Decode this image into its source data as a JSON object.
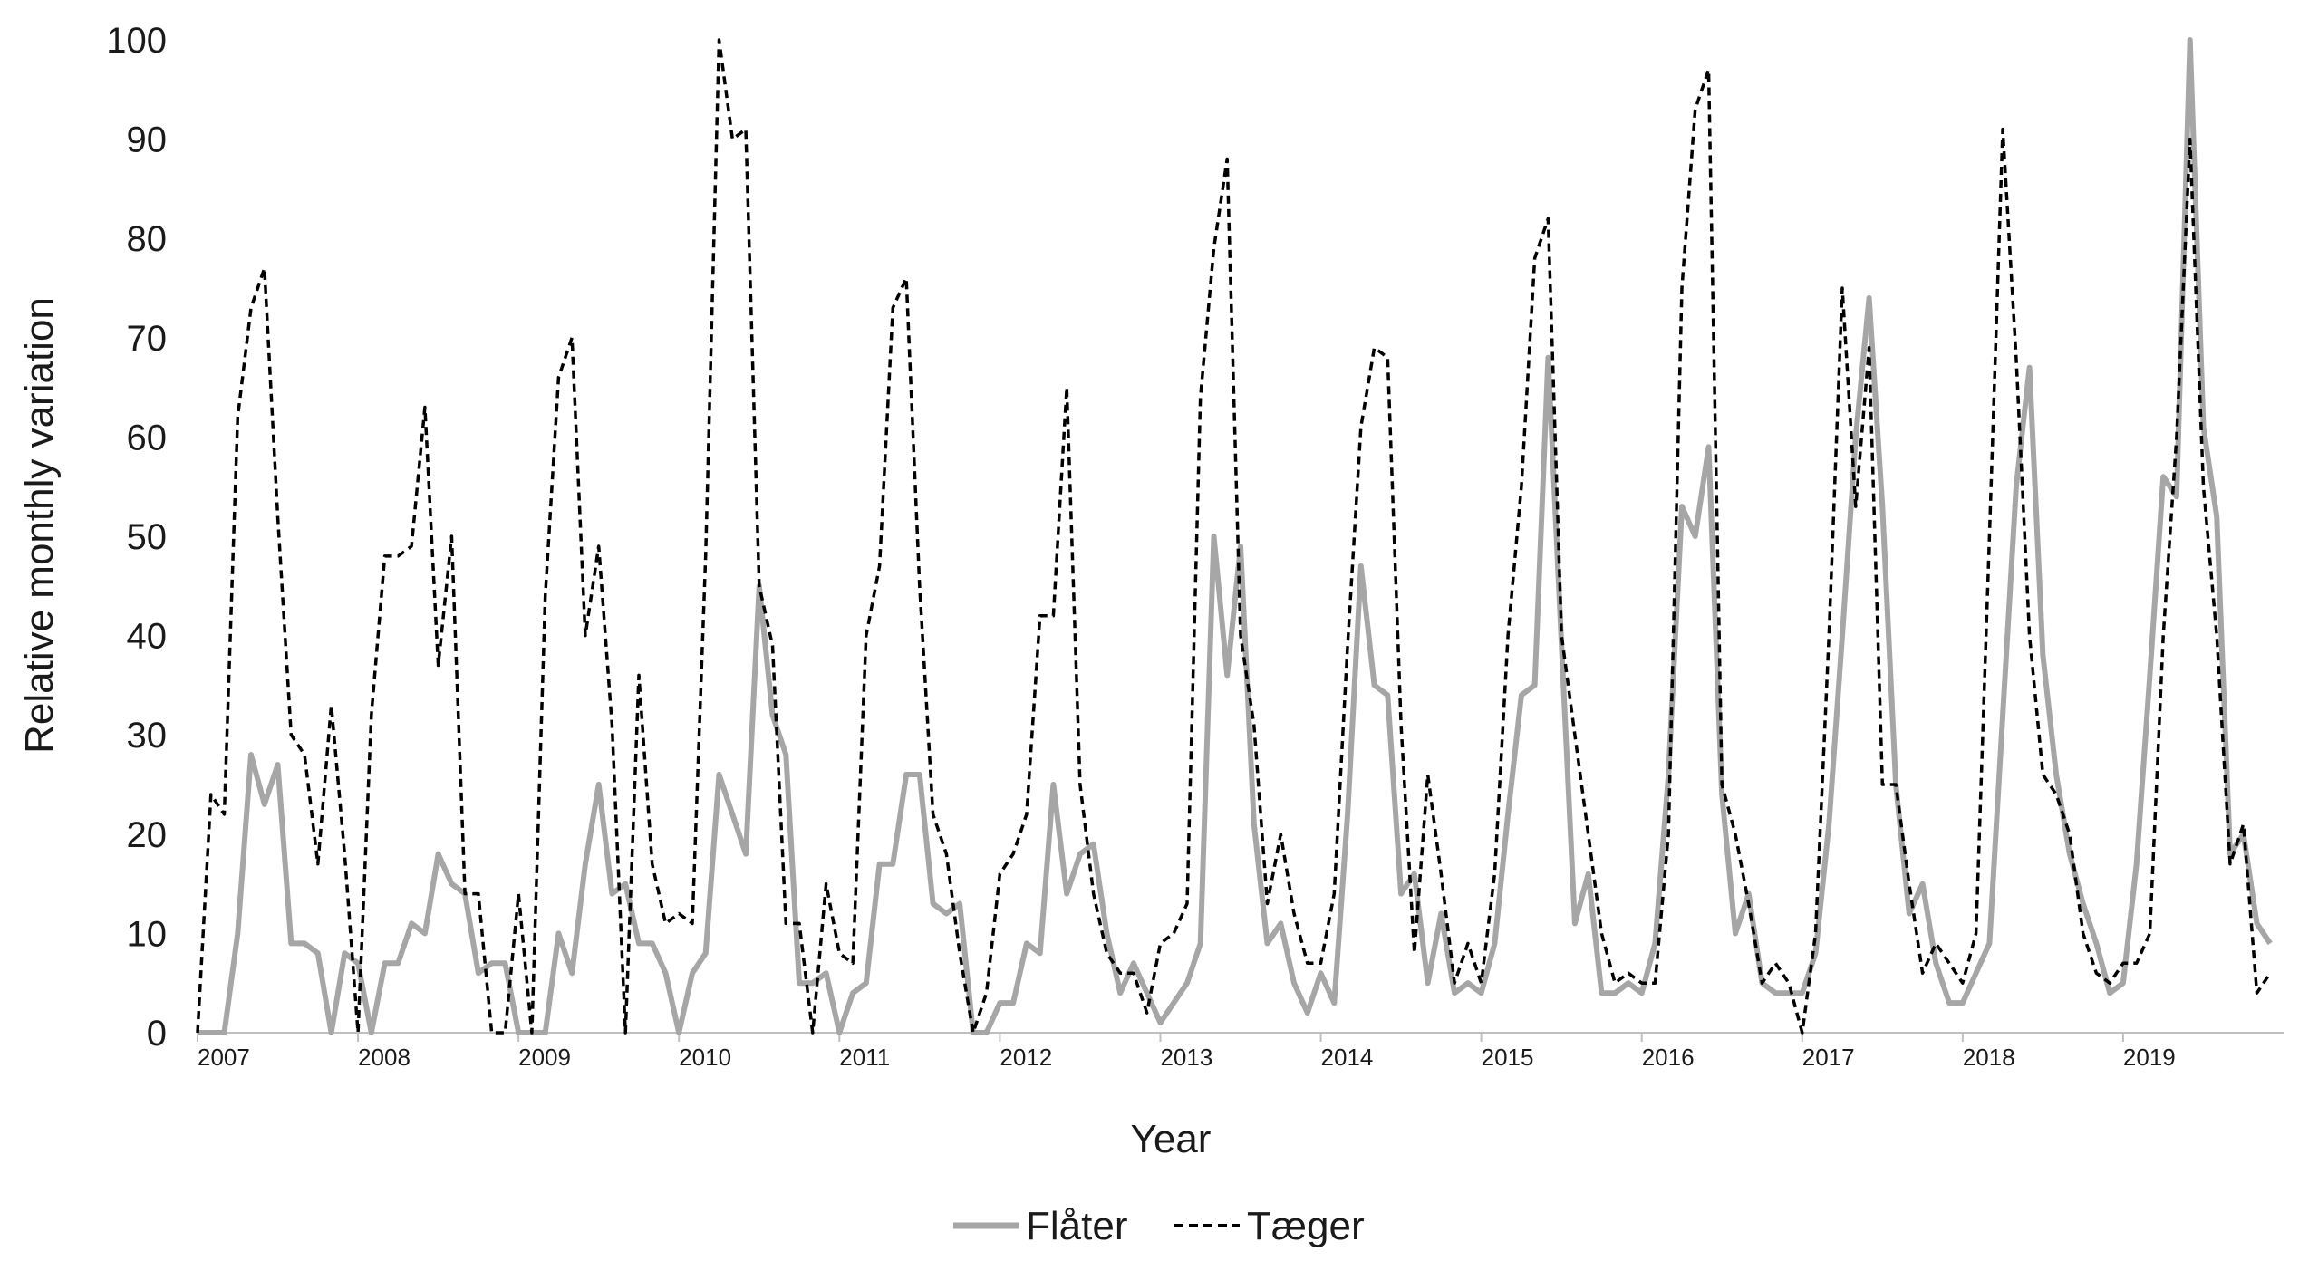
{
  "chart_data": {
    "type": "line",
    "xlabel": "Year",
    "ylabel": "Relative  monthly variation",
    "ylim": [
      0,
      100
    ],
    "yticks": [
      "0",
      "10",
      "20",
      "30",
      "40",
      "50",
      "60",
      "70",
      "80",
      "90",
      "100"
    ],
    "xlim": [
      2007.0,
      2020.0
    ],
    "xtick_labels": [
      "2007",
      "2008",
      "2009",
      "2010",
      "2011",
      "2012",
      "2013",
      "2014",
      "2015",
      "2016",
      "2017",
      "2018",
      "2019"
    ],
    "grid": false,
    "legend_position": "bottom-center",
    "series": [
      {
        "name": "Flåter",
        "color": "#a6a6a6",
        "style": "solid",
        "x": [
          2007.0,
          2007.0833,
          2007.1667,
          2007.25,
          2007.3333,
          2007.4167,
          2007.5,
          2007.5833,
          2007.6667,
          2007.75,
          2007.8333,
          2007.9167,
          2008.0,
          2008.0833,
          2008.1667,
          2008.25,
          2008.3333,
          2008.4167,
          2008.5,
          2008.5833,
          2008.6667,
          2008.75,
          2008.8333,
          2008.9167,
          2009.0,
          2009.0833,
          2009.1667,
          2009.25,
          2009.3333,
          2009.4167,
          2009.5,
          2009.5833,
          2009.6667,
          2009.75,
          2009.8333,
          2009.9167,
          2010.0,
          2010.0833,
          2010.1667,
          2010.25,
          2010.3333,
          2010.4167,
          2010.5,
          2010.5833,
          2010.6667,
          2010.75,
          2010.8333,
          2010.9167,
          2011.0,
          2011.0833,
          2011.1667,
          2011.25,
          2011.3333,
          2011.4167,
          2011.5,
          2011.5833,
          2011.6667,
          2011.75,
          2011.8333,
          2011.9167,
          2012.0,
          2012.0833,
          2012.1667,
          2012.25,
          2012.3333,
          2012.4167,
          2012.5,
          2012.5833,
          2012.6667,
          2012.75,
          2012.8333,
          2012.9167,
          2013.0,
          2013.0833,
          2013.1667,
          2013.25,
          2013.3333,
          2013.4167,
          2013.5,
          2013.5833,
          2013.6667,
          2013.75,
          2013.8333,
          2013.9167,
          2014.0,
          2014.0833,
          2014.1667,
          2014.25,
          2014.3333,
          2014.4167,
          2014.5,
          2014.5833,
          2014.6667,
          2014.75,
          2014.8333,
          2014.9167,
          2015.0,
          2015.0833,
          2015.1667,
          2015.25,
          2015.3333,
          2015.4167,
          2015.5,
          2015.5833,
          2015.6667,
          2015.75,
          2015.8333,
          2015.9167,
          2016.0,
          2016.0833,
          2016.1667,
          2016.25,
          2016.3333,
          2016.4167,
          2016.5,
          2016.5833,
          2016.6667,
          2016.75,
          2016.8333,
          2016.9167,
          2017.0,
          2017.0833,
          2017.1667,
          2017.25,
          2017.3333,
          2017.4167,
          2017.5,
          2017.5833,
          2017.6667,
          2017.75,
          2017.8333,
          2017.9167,
          2018.0,
          2018.0833,
          2018.1667,
          2018.25,
          2018.3333,
          2018.4167,
          2018.5,
          2018.5833,
          2018.6667,
          2018.75,
          2018.8333,
          2018.9167,
          2019.0,
          2019.0833,
          2019.1667,
          2019.25,
          2019.3333,
          2019.4167,
          2019.5,
          2019.5833,
          2019.6667,
          2019.75,
          2019.8333,
          2019.9167
        ],
        "y": [
          0,
          0,
          0,
          10,
          28,
          23,
          27,
          9,
          9,
          8,
          0,
          8,
          7,
          0,
          7,
          7,
          11,
          10,
          18,
          15,
          14,
          6,
          7,
          7,
          0,
          0,
          0,
          10,
          6,
          17,
          25,
          14,
          15,
          9,
          9,
          6,
          0,
          6,
          8,
          26,
          22,
          18,
          45,
          32,
          28,
          5,
          5,
          6,
          0,
          4,
          5,
          17,
          17,
          26,
          26,
          13,
          12,
          13,
          0,
          0,
          3,
          3,
          9,
          8,
          25,
          14,
          18,
          19,
          10,
          4,
          7,
          4,
          1,
          3,
          5,
          9,
          50,
          36,
          49,
          21,
          9,
          11,
          5,
          2,
          6,
          3,
          22,
          47,
          35,
          34,
          14,
          16,
          5,
          12,
          4,
          5,
          4,
          9,
          22,
          34,
          35,
          68,
          39,
          11,
          16,
          4,
          4,
          5,
          4,
          9,
          26,
          53,
          50,
          59,
          24,
          10,
          14,
          5,
          4,
          4,
          4,
          8,
          21,
          40,
          60,
          74,
          53,
          25,
          12,
          15,
          7,
          3,
          3,
          6,
          9,
          32,
          55,
          67,
          38,
          26,
          18,
          13,
          9,
          4,
          5,
          17,
          36,
          56,
          54,
          100,
          61,
          52,
          18,
          20,
          11,
          9
        ]
      },
      {
        "name": "Tæger",
        "color": "#000000",
        "style": "dashed",
        "x": [
          2007.0,
          2007.0833,
          2007.1667,
          2007.25,
          2007.3333,
          2007.4167,
          2007.5,
          2007.5833,
          2007.6667,
          2007.75,
          2007.8333,
          2007.9167,
          2008.0,
          2008.0833,
          2008.1667,
          2008.25,
          2008.3333,
          2008.4167,
          2008.5,
          2008.5833,
          2008.6667,
          2008.75,
          2008.8333,
          2008.9167,
          2009.0,
          2009.0833,
          2009.1667,
          2009.25,
          2009.3333,
          2009.4167,
          2009.5,
          2009.5833,
          2009.6667,
          2009.75,
          2009.8333,
          2009.9167,
          2010.0,
          2010.0833,
          2010.1667,
          2010.25,
          2010.3333,
          2010.4167,
          2010.5,
          2010.5833,
          2010.6667,
          2010.75,
          2010.8333,
          2010.9167,
          2011.0,
          2011.0833,
          2011.1667,
          2011.25,
          2011.3333,
          2011.4167,
          2011.5,
          2011.5833,
          2011.6667,
          2011.75,
          2011.8333,
          2011.9167,
          2012.0,
          2012.0833,
          2012.1667,
          2012.25,
          2012.3333,
          2012.4167,
          2012.5,
          2012.5833,
          2012.6667,
          2012.75,
          2012.8333,
          2012.9167,
          2013.0,
          2013.0833,
          2013.1667,
          2013.25,
          2013.3333,
          2013.4167,
          2013.5,
          2013.5833,
          2013.6667,
          2013.75,
          2013.8333,
          2013.9167,
          2014.0,
          2014.0833,
          2014.1667,
          2014.25,
          2014.3333,
          2014.4167,
          2014.5,
          2014.5833,
          2014.6667,
          2014.75,
          2014.8333,
          2014.9167,
          2015.0,
          2015.0833,
          2015.1667,
          2015.25,
          2015.3333,
          2015.4167,
          2015.5,
          2015.5833,
          2015.6667,
          2015.75,
          2015.8333,
          2015.9167,
          2016.0,
          2016.0833,
          2016.1667,
          2016.25,
          2016.3333,
          2016.4167,
          2016.5,
          2016.5833,
          2016.6667,
          2016.75,
          2016.8333,
          2016.9167,
          2017.0,
          2017.0833,
          2017.1667,
          2017.25,
          2017.3333,
          2017.4167,
          2017.5,
          2017.5833,
          2017.6667,
          2017.75,
          2017.8333,
          2017.9167,
          2018.0,
          2018.0833,
          2018.1667,
          2018.25,
          2018.3333,
          2018.4167,
          2018.5,
          2018.5833,
          2018.6667,
          2018.75,
          2018.8333,
          2018.9167,
          2019.0,
          2019.0833,
          2019.1667,
          2019.25,
          2019.3333,
          2019.4167,
          2019.5,
          2019.5833,
          2019.6667,
          2019.75,
          2019.8333,
          2019.9167
        ],
        "y": [
          0,
          24,
          22,
          62,
          73,
          77,
          52,
          30,
          28,
          17,
          33,
          18,
          0,
          32,
          48,
          48,
          49,
          63,
          37,
          50,
          14,
          14,
          0,
          0,
          14,
          0,
          44,
          66,
          70,
          40,
          49,
          31,
          0,
          36,
          17,
          11,
          12,
          11,
          48,
          100,
          90,
          91,
          45,
          39,
          11,
          11,
          0,
          15,
          8,
          7,
          40,
          47,
          73,
          76,
          45,
          22,
          18,
          8,
          0,
          4,
          16,
          18,
          22,
          42,
          42,
          65,
          25,
          14,
          8,
          6,
          6,
          2,
          9,
          10,
          13,
          64,
          79,
          88,
          40,
          31,
          13,
          20,
          12,
          7,
          7,
          14,
          39,
          61,
          69,
          68,
          31,
          8,
          26,
          16,
          5,
          9,
          5,
          16,
          40,
          55,
          78,
          82,
          40,
          30,
          20,
          10,
          5,
          6,
          5,
          5,
          20,
          75,
          93,
          97,
          25,
          20,
          13,
          5,
          7,
          5,
          0,
          10,
          40,
          75,
          53,
          69,
          25,
          25,
          15,
          6,
          9,
          7,
          5,
          10,
          50,
          91,
          68,
          40,
          26,
          24,
          20,
          10,
          6,
          5,
          7,
          7,
          10,
          40,
          60,
          90,
          55,
          40,
          17,
          21,
          4,
          6
        ]
      }
    ]
  }
}
